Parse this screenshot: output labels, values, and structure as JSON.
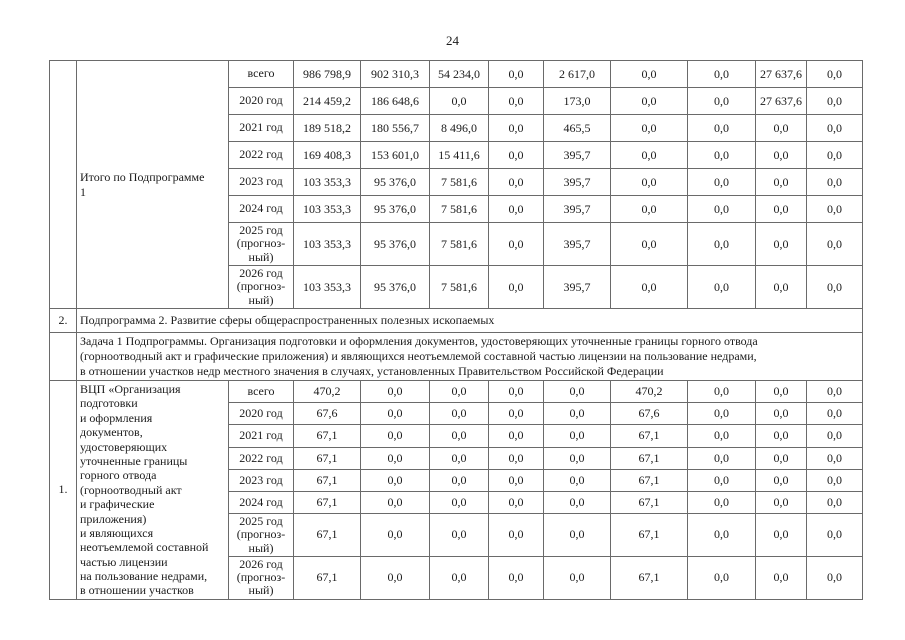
{
  "page": {
    "number": "24"
  },
  "table": {
    "blocks": [
      {
        "type": "data",
        "num": "",
        "title": "Итого по Подпрограмме\n1",
        "rows": [
          {
            "period": "всего",
            "values": [
              "986 798,9",
              "902 310,3",
              "54 234,0",
              "0,0",
              "2 617,0",
              "0,0",
              "0,0",
              "27 637,6",
              "0,0"
            ]
          },
          {
            "period": "2020 год",
            "values": [
              "214 459,2",
              "186 648,6",
              "0,0",
              "0,0",
              "173,0",
              "0,0",
              "0,0",
              "27 637,6",
              "0,0"
            ]
          },
          {
            "period": "2021 год",
            "values": [
              "189 518,2",
              "180 556,7",
              "8 496,0",
              "0,0",
              "465,5",
              "0,0",
              "0,0",
              "0,0",
              "0,0"
            ]
          },
          {
            "period": "2022 год",
            "values": [
              "169 408,3",
              "153 601,0",
              "15 411,6",
              "0,0",
              "395,7",
              "0,0",
              "0,0",
              "0,0",
              "0,0"
            ]
          },
          {
            "period": "2023 год",
            "values": [
              "103 353,3",
              "95 376,0",
              "7 581,6",
              "0,0",
              "395,7",
              "0,0",
              "0,0",
              "0,0",
              "0,0"
            ]
          },
          {
            "period": "2024 год",
            "values": [
              "103 353,3",
              "95 376,0",
              "7 581,6",
              "0,0",
              "395,7",
              "0,0",
              "0,0",
              "0,0",
              "0,0"
            ]
          },
          {
            "period": "2025 год\n(прогноз-\nный)",
            "values": [
              "103 353,3",
              "95 376,0",
              "7 581,6",
              "0,0",
              "395,7",
              "0,0",
              "0,0",
              "0,0",
              "0,0"
            ]
          },
          {
            "period": "2026 год\n(прогноз-\nный)",
            "values": [
              "103 353,3",
              "95 376,0",
              "7 581,6",
              "0,0",
              "395,7",
              "0,0",
              "0,0",
              "0,0",
              "0,0"
            ]
          }
        ]
      },
      {
        "type": "banner",
        "name": "subprogram-2-row",
        "num": "2.",
        "text": "Подпрограмма 2. Развитие сферы общераспространенных полезных ископаемых"
      },
      {
        "type": "banner",
        "name": "task-1-row",
        "num": "",
        "text": "Задача 1 Подпрограммы. Организация подготовки и оформления документов, удостоверяющих уточненные границы горного отвода\n(горноотводный акт и графические приложения) и являющихся неотъемлемой составной частью лицензии на пользование недрами,\nв отношении участков недр местного значения в случаях, установленных Правительством Российской Федерации"
      },
      {
        "type": "data",
        "num": "1.",
        "title": "ВЦП «Организация\nподготовки\nи оформления\nдокументов,\nудостоверяющих\nуточненные границы\nгорного отвода\n(горноотводный акт\nи графические\nприложения)\nи являющихся\nнеотъемлемой составной\nчастью лицензии\nна пользование недрами,\nв отношении участков",
        "rows": [
          {
            "period": "всего",
            "values": [
              "470,2",
              "0,0",
              "0,0",
              "0,0",
              "0,0",
              "470,2",
              "0,0",
              "0,0",
              "0,0"
            ]
          },
          {
            "period": "2020 год",
            "values": [
              "67,6",
              "0,0",
              "0,0",
              "0,0",
              "0,0",
              "67,6",
              "0,0",
              "0,0",
              "0,0"
            ]
          },
          {
            "period": "2021 год",
            "values": [
              "67,1",
              "0,0",
              "0,0",
              "0,0",
              "0,0",
              "67,1",
              "0,0",
              "0,0",
              "0,0"
            ]
          },
          {
            "period": "2022 год",
            "values": [
              "67,1",
              "0,0",
              "0,0",
              "0,0",
              "0,0",
              "67,1",
              "0,0",
              "0,0",
              "0,0"
            ]
          },
          {
            "period": "2023 год",
            "values": [
              "67,1",
              "0,0",
              "0,0",
              "0,0",
              "0,0",
              "67,1",
              "0,0",
              "0,0",
              "0,0"
            ]
          },
          {
            "period": "2024 год",
            "values": [
              "67,1",
              "0,0",
              "0,0",
              "0,0",
              "0,0",
              "67,1",
              "0,0",
              "0,0",
              "0,0"
            ]
          },
          {
            "period": "2025 год\n(прогноз-\nный)",
            "values": [
              "67,1",
              "0,0",
              "0,0",
              "0,0",
              "0,0",
              "67,1",
              "0,0",
              "0,0",
              "0,0"
            ]
          },
          {
            "period": "2026 год\n(прогноз-\nный)",
            "values": [
              "67,1",
              "0,0",
              "0,0",
              "0,0",
              "0,0",
              "67,1",
              "0,0",
              "0,0",
              "0,0"
            ]
          }
        ]
      }
    ]
  }
}
